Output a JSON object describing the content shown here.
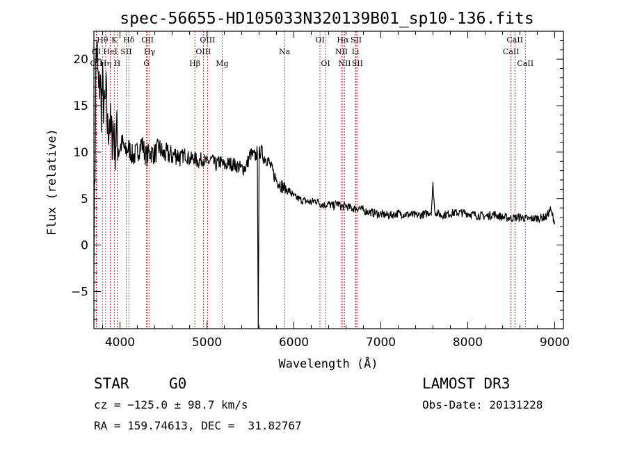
{
  "chart_data": {
    "type": "line",
    "title": "spec-56655-HD105033N320139B01_sp10-136.fits",
    "xlabel": "Wavelength (Å)",
    "ylabel": "Flux (relative)",
    "xlim": [
      3700,
      9100
    ],
    "ylim": [
      -9,
      23
    ],
    "xticks": [
      4000,
      5000,
      6000,
      7000,
      8000,
      9000
    ],
    "yticks": [
      -5,
      0,
      5,
      10,
      15,
      20
    ],
    "xtick_labels": [
      "4000",
      "5000",
      "6000",
      "7000",
      "8000",
      "9000"
    ],
    "ytick_labels": [
      "−5",
      "0",
      "5",
      "10",
      "15",
      "20"
    ],
    "series": [
      {
        "name": "flux",
        "x": [
          3700,
          3712,
          3725,
          3740,
          3755,
          3770,
          3785,
          3800,
          3820,
          3840,
          3860,
          3880,
          3900,
          3920,
          3940,
          3960,
          3980,
          4000,
          4030,
          4060,
          4100,
          4150,
          4200,
          4250,
          4300,
          4350,
          4400,
          4450,
          4500,
          4550,
          4600,
          4650,
          4700,
          4750,
          4800,
          4850,
          4900,
          4950,
          5000,
          5050,
          5100,
          5150,
          5200,
          5250,
          5300,
          5350,
          5400,
          5450,
          5500,
          5550,
          5580,
          5590,
          5600,
          5620,
          5650,
          5700,
          5750,
          5800,
          5850,
          5900,
          5950,
          6000,
          6050,
          6100,
          6150,
          6200,
          6250,
          6300,
          6350,
          6400,
          6450,
          6500,
          6550,
          6600,
          6650,
          6700,
          6750,
          6800,
          6900,
          7000,
          7100,
          7200,
          7300,
          7400,
          7500,
          7580,
          7600,
          7620,
          7700,
          7800,
          7900,
          8000,
          8100,
          8200,
          8300,
          8400,
          8500,
          8600,
          8700,
          8800,
          8900,
          8950,
          9000
        ],
        "y": [
          0.5,
          8,
          21,
          20,
          16,
          18,
          15,
          17,
          14,
          16,
          12,
          14,
          11,
          13,
          10.5,
          12,
          11,
          10.5,
          11,
          10,
          10.5,
          9.5,
          10,
          11,
          9.5,
          10,
          9.8,
          10.5,
          9.7,
          9.8,
          9.6,
          9.8,
          9.4,
          9.8,
          9.2,
          9.4,
          9.0,
          9.3,
          8.8,
          9.2,
          8.6,
          9.0,
          8.5,
          8.8,
          8.7,
          8.5,
          8.2,
          8.4,
          9.8,
          9.5,
          10.0,
          -9,
          9.8,
          10.2,
          9.5,
          9.2,
          8.0,
          7.0,
          6.5,
          6.0,
          5.8,
          5.2,
          5.0,
          4.8,
          4.7,
          4.6,
          4.8,
          4.5,
          4.3,
          4.4,
          4.2,
          4.5,
          4.1,
          4.2,
          4.0,
          3.9,
          4.0,
          3.7,
          3.5,
          3.3,
          3.2,
          3.4,
          3.3,
          3.2,
          3.3,
          3.6,
          6.5,
          3.6,
          3.2,
          3.4,
          3.5,
          3.4,
          3.2,
          3.1,
          3.3,
          3.0,
          2.9,
          3.0,
          2.8,
          2.9,
          3.0,
          3.8,
          2.5
        ]
      }
    ],
    "spectral_lines": [
      {
        "label": "Hθ",
        "wavelength": 3798,
        "row": 1
      },
      {
        "label": "K",
        "wavelength": 3934,
        "row": 1
      },
      {
        "label": "Hδ",
        "wavelength": 4102,
        "row": 1
      },
      {
        "label": "OII",
        "wavelength": 4317,
        "row": 1
      },
      {
        "label": "OIII",
        "wavelength": 5007,
        "row": 1
      },
      {
        "label": "OI",
        "wavelength": 6300,
        "row": 1
      },
      {
        "label": "Hα",
        "wavelength": 6563,
        "row": 1
      },
      {
        "label": "SII",
        "wavelength": 6716,
        "row": 1
      },
      {
        "label": "CaII",
        "wavelength": 8542,
        "row": 1
      },
      {
        "label": "OI",
        "wavelength": 3727,
        "row": 2
      },
      {
        "label": "HeI",
        "wavelength": 3889,
        "row": 2
      },
      {
        "label": "SII",
        "wavelength": 4072,
        "row": 2
      },
      {
        "label": "Hγ",
        "wavelength": 4340,
        "row": 2
      },
      {
        "label": "OIII",
        "wavelength": 4959,
        "row": 2
      },
      {
        "label": "Na",
        "wavelength": 5893,
        "row": 2
      },
      {
        "label": "NII",
        "wavelength": 6548,
        "row": 2
      },
      {
        "label": "Li",
        "wavelength": 6708,
        "row": 2
      },
      {
        "label": "CaII",
        "wavelength": 8498,
        "row": 2
      },
      {
        "label": "OII",
        "wavelength": 3727,
        "row": 3
      },
      {
        "label": "Hη",
        "wavelength": 3835,
        "row": 3
      },
      {
        "label": "H",
        "wavelength": 3968,
        "row": 3
      },
      {
        "label": "G",
        "wavelength": 4305,
        "row": 3
      },
      {
        "label": "Hβ",
        "wavelength": 4861,
        "row": 3
      },
      {
        "label": "Mg",
        "wavelength": 5175,
        "row": 3
      },
      {
        "label": "OI",
        "wavelength": 6364,
        "row": 3
      },
      {
        "label": "NII",
        "wavelength": 6583,
        "row": 3
      },
      {
        "label": "SII",
        "wavelength": 6731,
        "row": 3
      },
      {
        "label": "CaII",
        "wavelength": 8662,
        "row": 3
      }
    ]
  },
  "info": {
    "class": "STAR",
    "subclass": "G0",
    "survey": "LAMOST DR3",
    "cz": "cz = −125.0 ± 98.7 km/s",
    "obs_date": "Obs-Date: 20131228",
    "coords": "RA = 159.74613, DEC =  31.82767"
  },
  "colors": {
    "line": "#000000",
    "marker": "#cc0000",
    "axis": "#000000"
  }
}
